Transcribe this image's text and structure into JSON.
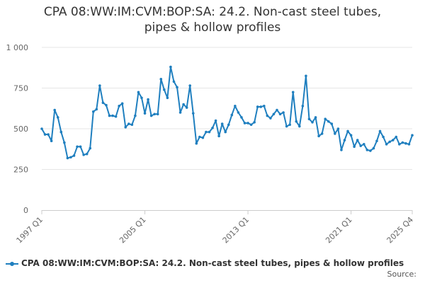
{
  "chart_data": {
    "type": "line",
    "title_line1": "CPA 08:WW:IM:CVM:BOP:SA: 24.2. Non-cast steel tubes,",
    "title_line2": "pipes & hollow profiles",
    "xlabel": "",
    "ylabel": "",
    "ylim": [
      0,
      1000
    ],
    "y_ticks": [
      {
        "value": 0,
        "label": "0"
      },
      {
        "value": 250,
        "label": "250"
      },
      {
        "value": 500,
        "label": "500"
      },
      {
        "value": 750,
        "label": "750"
      },
      {
        "value": 1000,
        "label": "1 000"
      }
    ],
    "x_start": {
      "year": 1997,
      "quarter": 1
    },
    "x_ticks": [
      {
        "index": 0,
        "label": "1997 Q1"
      },
      {
        "index": 32,
        "label": "2005 Q1"
      },
      {
        "index": 64,
        "label": "2013 Q1"
      },
      {
        "index": 96,
        "label": "2021 Q1"
      },
      {
        "index": 115,
        "label": "2025 Q4"
      }
    ],
    "grid": true,
    "legend_position": "bottom",
    "series": [
      {
        "name": "CPA 08:WW:IM:CVM:BOP:SA: 24.2. Non-cast steel tubes, pipes & hollow profiles",
        "color": "#1f7fbf",
        "values": [
          500,
          465,
          465,
          425,
          615,
          570,
          480,
          415,
          320,
          325,
          335,
          390,
          390,
          340,
          345,
          380,
          605,
          620,
          765,
          660,
          645,
          580,
          580,
          575,
          640,
          655,
          510,
          530,
          525,
          580,
          725,
          690,
          595,
          680,
          580,
          590,
          590,
          805,
          740,
          690,
          880,
          790,
          755,
          600,
          650,
          630,
          765,
          595,
          410,
          450,
          445,
          480,
          480,
          505,
          550,
          455,
          530,
          480,
          525,
          585,
          640,
          600,
          570,
          535,
          535,
          525,
          540,
          635,
          635,
          640,
          580,
          565,
          590,
          615,
          590,
          600,
          515,
          525,
          725,
          545,
          515,
          640,
          825,
          560,
          540,
          570,
          455,
          470,
          560,
          545,
          530,
          470,
          500,
          370,
          430,
          485,
          460,
          390,
          430,
          395,
          405,
          370,
          365,
          380,
          425,
          485,
          450,
          405,
          420,
          430,
          450,
          405,
          415,
          410,
          405,
          460
        ]
      }
    ]
  },
  "footer": {
    "source_label": "Source:"
  }
}
